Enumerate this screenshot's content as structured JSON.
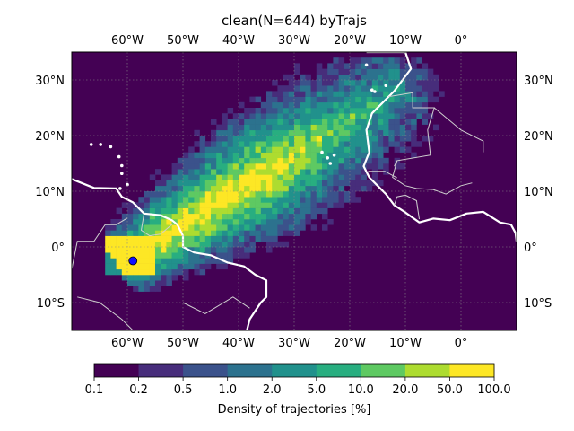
{
  "title": "clean(N=644) byTrajs",
  "map": {
    "lon_range": [
      -70,
      10
    ],
    "lat_range": [
      -15,
      35
    ],
    "lon_ticks": [
      {
        "value": -60,
        "label": "60°W"
      },
      {
        "value": -50,
        "label": "50°W"
      },
      {
        "value": -40,
        "label": "40°W"
      },
      {
        "value": -30,
        "label": "30°W"
      },
      {
        "value": -20,
        "label": "20°W"
      },
      {
        "value": -10,
        "label": "10°W"
      },
      {
        "value": 0,
        "label": "0°"
      }
    ],
    "lat_ticks": [
      {
        "value": 30,
        "label": "30°N"
      },
      {
        "value": 20,
        "label": "20°N"
      },
      {
        "value": 10,
        "label": "10°N"
      },
      {
        "value": 0,
        "label": "0°"
      },
      {
        "value": -10,
        "label": "10°S"
      }
    ],
    "grid": true,
    "background_color": "#440154",
    "coastline_color": "#ffffff",
    "border_color": "#d0d0d0",
    "site_marker": {
      "lon": -59,
      "lat": -2.5,
      "color": "#1010ff"
    }
  },
  "colorbar": {
    "label": "Density of trajectories [%]",
    "tick_labels": [
      "0.1",
      "0.2",
      "0.5",
      "1.0",
      "2.0",
      "5.0",
      "10.0",
      "20.0",
      "50.0",
      "100.0"
    ],
    "colors": [
      "#440154",
      "#472d7b",
      "#3b528b",
      "#2c728e",
      "#21918c",
      "#28ae80",
      "#5ec962",
      "#addc30",
      "#fde725"
    ]
  }
}
